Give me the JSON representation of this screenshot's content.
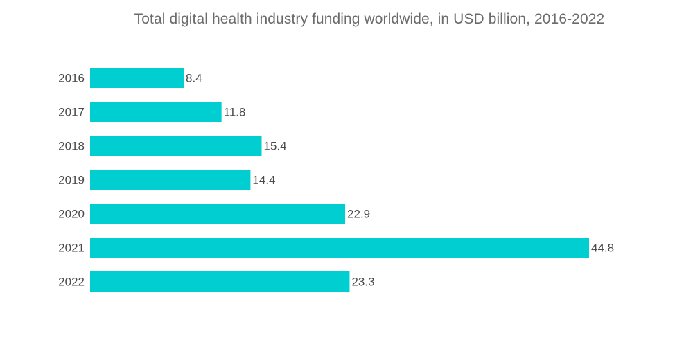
{
  "chart_data": {
    "type": "bar",
    "orientation": "horizontal",
    "title": "Total digital health industry funding worldwide, in USD billion, 2016-2022",
    "xlabel": "",
    "ylabel": "",
    "categories": [
      "2016",
      "2017",
      "2018",
      "2019",
      "2020",
      "2021",
      "2022"
    ],
    "values": [
      8.4,
      11.8,
      15.4,
      14.4,
      22.9,
      44.8,
      23.3
    ],
    "value_labels": [
      "8.4",
      "11.8",
      "15.4",
      "14.4",
      "22.9",
      "44.8",
      "23.3"
    ],
    "xlim": [
      0,
      44.8
    ],
    "grid": false,
    "legend": "none",
    "bar_color": "#00ced1",
    "text_color": "#4a4a4a",
    "title_color": "#6b6b6b"
  }
}
